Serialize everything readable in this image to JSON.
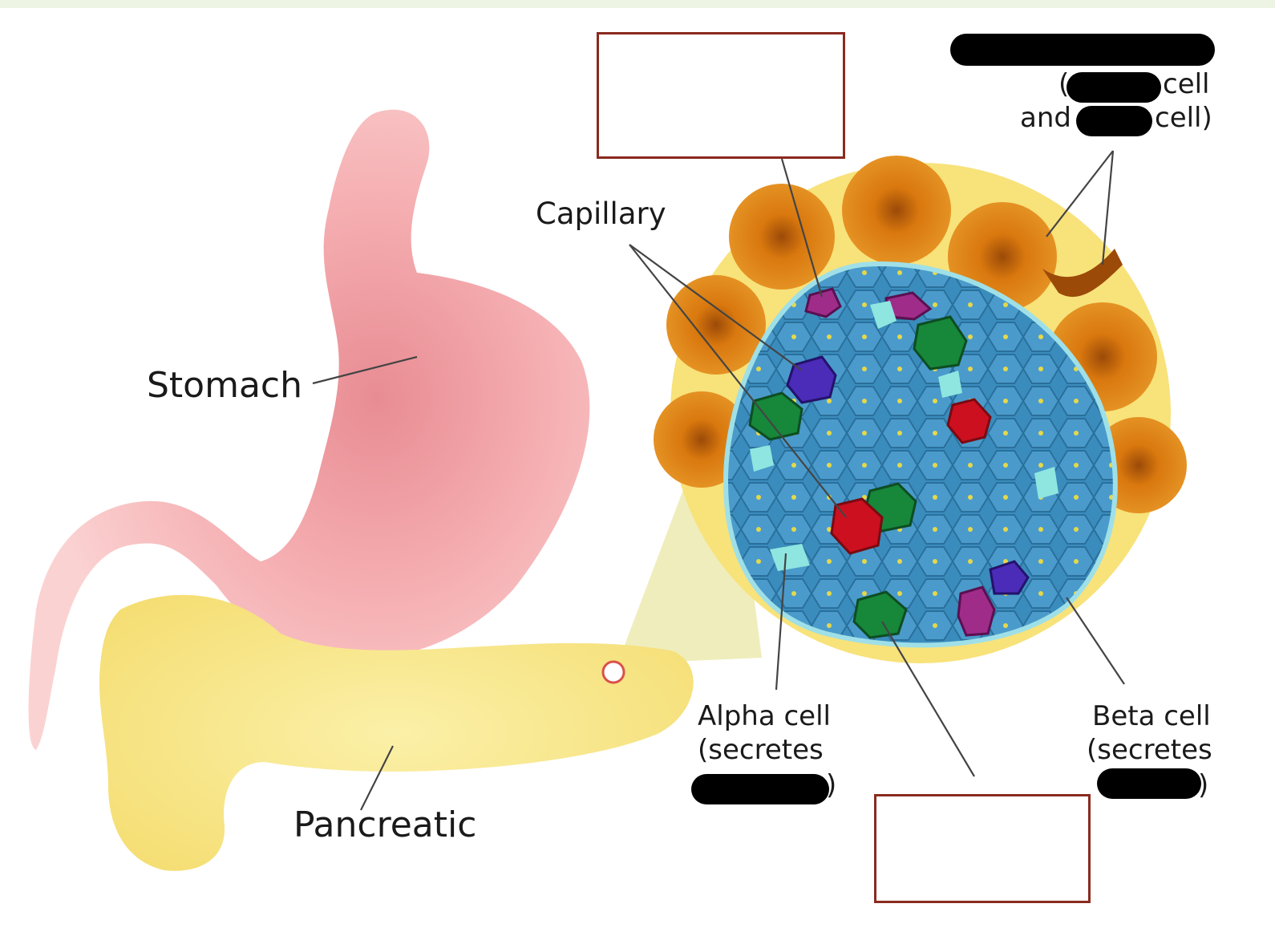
{
  "labels": {
    "stomach": "Stomach",
    "capillary": "Capillary",
    "pancreatic": "Pancreatic",
    "alpha_line1": "Alpha cell",
    "alpha_line2": "(secretes",
    "alpha_close": ")",
    "beta_line1": "Beta cell",
    "beta_line2": "(secretes",
    "beta_close": ")",
    "exocrine_open": "(",
    "exocrine_cell1": "cell",
    "exocrine_and": "and",
    "exocrine_cell2": "cell)"
  },
  "colors": {
    "stomach": "#f4a6a8",
    "pancreas": "#f6e48a",
    "islet_fill": "#3f8fc0",
    "acinar": "#d97a12",
    "alpha_cell": "#17873a",
    "beta_cell": "#3f8fc0",
    "delta_cell": "#cc1020",
    "answer_box_border": "#8b2a1f",
    "redaction": "#000000"
  }
}
